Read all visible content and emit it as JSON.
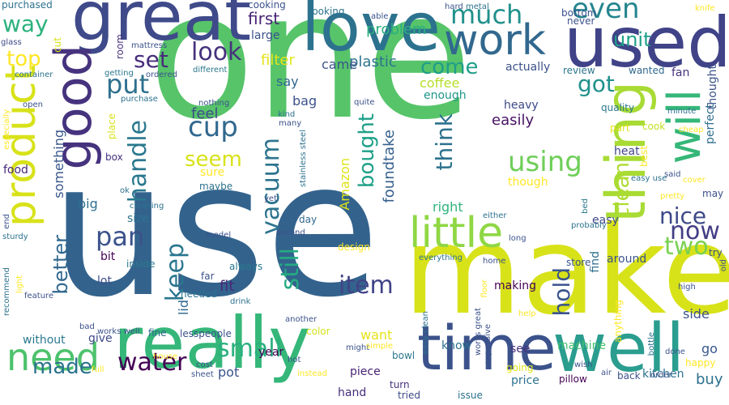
{
  "words": [
    {
      "text": "one",
      "color": "#57c46a"
    },
    {
      "text": "use",
      "color": "#33638d"
    },
    {
      "text": "make",
      "color": "#d8e219"
    },
    {
      "text": "really",
      "color": "#35b779"
    },
    {
      "text": "well",
      "color": "#2a9d8f"
    },
    {
      "text": "time",
      "color": "#3b528b"
    },
    {
      "text": "love",
      "color": "#2c728e"
    },
    {
      "text": "great",
      "color": "#3f4a8a"
    },
    {
      "text": "used",
      "color": "#404387"
    },
    {
      "text": "work",
      "color": "#31688e"
    },
    {
      "text": "good",
      "color": "#46337e"
    },
    {
      "text": "product",
      "color": "#d8e219"
    },
    {
      "text": "thing",
      "color": "#a8db34"
    },
    {
      "text": "will",
      "color": "#35b779"
    },
    {
      "text": "little",
      "color": "#8fd744"
    },
    {
      "text": "need",
      "color": "#4cc26c"
    },
    {
      "text": "vacuum",
      "color": "#2c738e"
    },
    {
      "text": "using",
      "color": "#6ece58"
    },
    {
      "text": "look",
      "color": "#46327e"
    },
    {
      "text": "item",
      "color": "#414487"
    },
    {
      "text": "much",
      "color": "#21918c"
    },
    {
      "text": "even",
      "color": "#25858e"
    },
    {
      "text": "set",
      "color": "#472d7b"
    },
    {
      "text": "put",
      "color": "#2d708e"
    },
    {
      "text": "cup",
      "color": "#31688e"
    },
    {
      "text": "handle",
      "color": "#2a788e"
    },
    {
      "text": "pan",
      "color": "#3b528b"
    },
    {
      "text": "water",
      "color": "#440154"
    },
    {
      "text": "made",
      "color": "#2c728e"
    },
    {
      "text": "small",
      "color": "#2ab07f"
    },
    {
      "text": "keep",
      "color": "#2a768e"
    },
    {
      "text": "still",
      "color": "#25ab82"
    },
    {
      "text": "hold",
      "color": "#3a548c"
    },
    {
      "text": "nice",
      "color": "#3e4989"
    },
    {
      "text": "now",
      "color": "#433e85"
    },
    {
      "text": "two",
      "color": "#7ad151"
    },
    {
      "text": "got",
      "color": "#21918c"
    },
    {
      "text": "come",
      "color": "#1f9e89"
    },
    {
      "text": "unit",
      "color": "#1fa187"
    },
    {
      "text": "way",
      "color": "#2db27d"
    },
    {
      "text": "top",
      "color": "#fde725"
    },
    {
      "text": "seem",
      "color": "#d8e219"
    },
    {
      "text": "feel",
      "color": "#3e4c8a"
    },
    {
      "text": "think",
      "color": "#2c728e"
    },
    {
      "text": "bought",
      "color": "#1fa088"
    },
    {
      "text": "clean",
      "color": "#addc30"
    },
    {
      "text": "better",
      "color": "#31688e"
    },
    {
      "text": "first",
      "color": "#482475"
    },
    {
      "text": "filter",
      "color": "#e5e419"
    },
    {
      "text": "plastic",
      "color": "#2c728e"
    },
    {
      "text": "problem",
      "color": "#29af7f"
    },
    {
      "text": "came",
      "color": "#3b528b"
    },
    {
      "text": "coffee",
      "color": "#b5de2b"
    },
    {
      "text": "enough",
      "color": "#1f968b"
    },
    {
      "text": "easily",
      "color": "#471164"
    },
    {
      "text": "say",
      "color": "#31688e"
    },
    {
      "text": "bag",
      "color": "#3b528b"
    },
    {
      "text": "review",
      "color": "#2a768e"
    },
    {
      "text": "wanted",
      "color": "#31688e"
    },
    {
      "text": "quality",
      "color": "#2a788e"
    },
    {
      "text": "heavy",
      "color": "#3e4a89"
    },
    {
      "text": "perfect",
      "color": "#2e6e8e"
    },
    {
      "text": "thought",
      "color": "#3b528b"
    },
    {
      "text": "Amazon",
      "color": "#e1e418"
    },
    {
      "text": "foundtake",
      "color": "#355f8d"
    },
    {
      "text": "something",
      "color": "#39568c"
    },
    {
      "text": "big",
      "color": "#2e6f8e"
    },
    {
      "text": "size",
      "color": "#2c738e"
    },
    {
      "text": "bit",
      "color": "#440154"
    },
    {
      "text": "lot",
      "color": "#3d4e8a"
    },
    {
      "text": "right",
      "color": "#2fb47c"
    },
    {
      "text": "easy",
      "color": "#3f4889"
    },
    {
      "text": "heat",
      "color": "#404688"
    },
    {
      "text": "cook",
      "color": "#c2df23"
    },
    {
      "text": "part",
      "color": "#e2e418"
    },
    {
      "text": "around",
      "color": "#3b528b"
    },
    {
      "text": "find",
      "color": "#2e6f8e"
    },
    {
      "text": "fit",
      "color": "#482878"
    },
    {
      "text": "lid",
      "color": "#31688e"
    },
    {
      "text": "design",
      "color": "#fde725"
    },
    {
      "text": "store",
      "color": "#3a548c"
    },
    {
      "text": "making",
      "color": "#440154"
    },
    {
      "text": "want",
      "color": "#e5e419"
    },
    {
      "text": "color",
      "color": "#d2e21b"
    },
    {
      "text": "see",
      "color": "#472c7a"
    },
    {
      "text": "know",
      "color": "#2c728e"
    },
    {
      "text": "machine",
      "color": "#46c06f"
    },
    {
      "text": "side",
      "color": "#3b528b"
    },
    {
      "text": "go",
      "color": "#39568c"
    },
    {
      "text": "happy",
      "color": "#fde725"
    },
    {
      "text": "buy",
      "color": "#2d708e"
    },
    {
      "text": "without",
      "color": "#2a788e"
    },
    {
      "text": "give",
      "color": "#3e4a89"
    },
    {
      "text": "fine",
      "color": "#31688e"
    },
    {
      "text": "year",
      "color": "#440154"
    },
    {
      "text": "piece",
      "color": "#482475"
    },
    {
      "text": "going",
      "color": "#dde318"
    },
    {
      "text": "price",
      "color": "#2c728e"
    },
    {
      "text": "pillow",
      "color": "#440154"
    },
    {
      "text": "back",
      "color": "#3b528b"
    },
    {
      "text": "kitchen",
      "color": "#2c728e"
    },
    {
      "text": "hand",
      "color": "#472d7b"
    },
    {
      "text": "turn",
      "color": "#46327e"
    },
    {
      "text": "tried",
      "color": "#3e4989"
    },
    {
      "text": "issue",
      "color": "#2c728e"
    },
    {
      "text": "bowl",
      "color": "#2a788e"
    },
    {
      "text": "day",
      "color": "#31688e"
    },
    {
      "text": "maybe",
      "color": "#2c728e"
    },
    {
      "text": "sure",
      "color": "#fde725"
    },
    {
      "text": "box",
      "color": "#46327e"
    },
    {
      "text": "food",
      "color": "#482878"
    },
    {
      "text": "place",
      "color": "#d8e219"
    },
    {
      "text": "always",
      "color": "#2a788e"
    },
    {
      "text": "far",
      "color": "#3b528b"
    },
    {
      "text": "inside",
      "color": "#2a788e"
    },
    {
      "text": "needed",
      "color": "#2c728e"
    },
    {
      "text": "large",
      "color": "#3b528b"
    },
    {
      "text": "looking",
      "color": "#2c728e"
    },
    {
      "text": "cooking",
      "color": "#3b528b"
    },
    {
      "text": "purchased",
      "color": "#2c728e"
    },
    {
      "text": "cut",
      "color": "#d8e219"
    },
    {
      "text": "room",
      "color": "#46327e"
    },
    {
      "text": "getting",
      "color": "#2a788e"
    },
    {
      "text": "ordered",
      "color": "#3b528b"
    },
    {
      "text": "different",
      "color": "#2a788e"
    },
    {
      "text": "mattress",
      "color": "#3b528b"
    },
    {
      "text": "glass",
      "color": "#3e4989"
    },
    {
      "text": "container",
      "color": "#2c728e"
    },
    {
      "text": "open",
      "color": "#3b528b"
    },
    {
      "text": "especially",
      "color": "#fde725"
    },
    {
      "text": "purchase",
      "color": "#2c728e"
    },
    {
      "text": "nothing",
      "color": "#3b528b"
    },
    {
      "text": "kind",
      "color": "#2c728e"
    },
    {
      "text": "many",
      "color": "#3b528b"
    },
    {
      "text": "stainless steel",
      "color": "#2c728e"
    },
    {
      "text": "quite",
      "color": "#3b528b"
    },
    {
      "text": "actually",
      "color": "#3b528b"
    },
    {
      "text": "fan",
      "color": "#46327e"
    },
    {
      "text": "minute",
      "color": "#2c728e"
    },
    {
      "text": "cheap",
      "color": "#fde725"
    },
    {
      "text": "best",
      "color": "#fde725"
    },
    {
      "text": "easy use",
      "color": "#2c728e"
    },
    {
      "text": "said",
      "color": "#3b528b"
    },
    {
      "text": "cover",
      "color": "#fde725"
    },
    {
      "text": "pretty",
      "color": "#fde725"
    },
    {
      "text": "may",
      "color": "#3b528b"
    },
    {
      "text": "though",
      "color": "#fde725"
    },
    {
      "text": "bed",
      "color": "#2a788e"
    },
    {
      "text": "probably",
      "color": "#2c728e"
    },
    {
      "text": "long",
      "color": "#3b528b"
    },
    {
      "text": "either",
      "color": "#2c728e"
    },
    {
      "text": "home",
      "color": "#3b528b"
    },
    {
      "text": "everything",
      "color": "#2c728e"
    },
    {
      "text": "works great",
      "color": "#3b528b"
    },
    {
      "text": "floor",
      "color": "#fde725"
    },
    {
      "text": "easy clean",
      "color": "#2c728e"
    },
    {
      "text": "expensive",
      "color": "#3b528b"
    },
    {
      "text": "help",
      "color": "#fde725"
    },
    {
      "text": "wish",
      "color": "#3b528b"
    },
    {
      "text": "air",
      "color": "#3b528b"
    },
    {
      "text": "order",
      "color": "#3b528b"
    },
    {
      "text": "bottle",
      "color": "#2c728e"
    },
    {
      "text": "done",
      "color": "#3b528b"
    },
    {
      "text": "high",
      "color": "#3b528b"
    },
    {
      "text": "old",
      "color": "#3b528b"
    },
    {
      "text": "try",
      "color": "#3b528b"
    },
    {
      "text": "anything",
      "color": "#fde725"
    },
    {
      "text": "hard",
      "color": "#3b528b"
    },
    {
      "text": "metal",
      "color": "#2c728e"
    },
    {
      "text": "able",
      "color": "#3b528b"
    },
    {
      "text": "knife",
      "color": "#fde725"
    },
    {
      "text": "bottom",
      "color": "#3b528b"
    },
    {
      "text": "never",
      "color": "#3b528b"
    },
    {
      "text": "ok",
      "color": "#2c728e"
    },
    {
      "text": "cleaning",
      "color": "#2c728e"
    },
    {
      "text": "yet",
      "color": "#3b528b"
    },
    {
      "text": "second",
      "color": "#3b528b"
    },
    {
      "text": "model",
      "color": "#3b528b"
    },
    {
      "text": "drink",
      "color": "#2c728e"
    },
    {
      "text": "lesspeople",
      "color": "#3b528b"
    },
    {
      "text": "works well",
      "color": "#3b528b"
    },
    {
      "text": "bad",
      "color": "#3b528b"
    },
    {
      "text": "another",
      "color": "#3b528b"
    },
    {
      "text": "hot",
      "color": "#3b528b"
    },
    {
      "text": "house",
      "color": "#fde725"
    },
    {
      "text": "might",
      "color": "#3b528b"
    },
    {
      "text": "simple",
      "color": "#fde725"
    },
    {
      "text": "full",
      "color": "#fde725"
    },
    {
      "text": "cost",
      "color": "#3b528b"
    },
    {
      "text": "sheet",
      "color": "#3b528b"
    },
    {
      "text": "instead",
      "color": "#fde725"
    },
    {
      "text": "pot",
      "color": "#3b528b"
    },
    {
      "text": "sturdy",
      "color": "#2c728e"
    },
    {
      "text": "recommend",
      "color": "#2c728e"
    },
    {
      "text": "light",
      "color": "#fde725"
    },
    {
      "text": "feature",
      "color": "#3b528b"
    },
    {
      "text": "end",
      "color": "#3b528b"
    },
    {
      "text": "instead",
      "color": "#fde725"
    }
  ]
}
